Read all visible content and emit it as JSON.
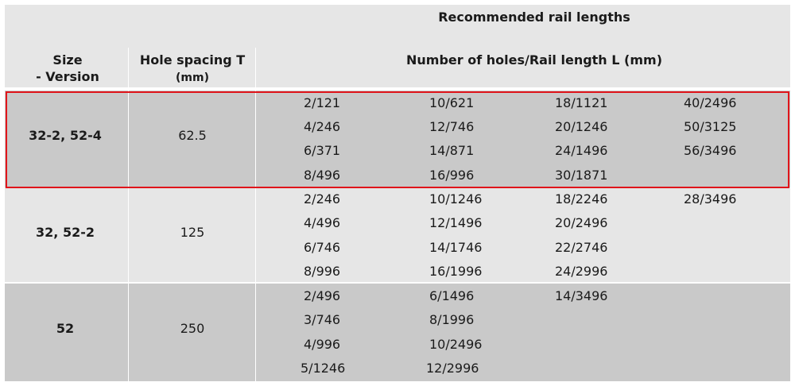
{
  "header": {
    "group_title": "Recommended rail lengths",
    "col_size_line1": "Size",
    "col_size_line2": "- Version",
    "col_hole_line1": "Hole spacing T",
    "col_hole_line2": "(mm)",
    "col_lengths": "Number of holes/Rail length L (mm)"
  },
  "rows": [
    {
      "size": "32-2, 52-4",
      "spacing": "62.5",
      "lengths": [
        [
          "2/121",
          "10/621",
          "18/1121",
          "40/2496"
        ],
        [
          "4/246",
          "12/746",
          "20/1246",
          "50/3125"
        ],
        [
          "6/371",
          "14/871",
          "24/1496",
          "56/3496"
        ],
        [
          "8/496",
          "16/996",
          "30/1871",
          ""
        ]
      ]
    },
    {
      "size": "32, 52-2",
      "spacing": "125",
      "lengths": [
        [
          "2/246",
          "10/1246",
          "18/2246",
          "28/3496"
        ],
        [
          "4/496",
          "12/1496",
          "20/2496",
          ""
        ],
        [
          "6/746",
          "14/1746",
          "22/2746",
          ""
        ],
        [
          "8/996",
          "16/1996",
          "24/2996",
          ""
        ]
      ]
    },
    {
      "size": "52",
      "spacing": "250",
      "lengths": [
        [
          "2/496",
          "6/1496",
          "14/3496",
          ""
        ],
        [
          "3/746",
          "8/1996",
          "",
          ""
        ],
        [
          "4/996",
          "10/2496",
          "",
          ""
        ],
        [
          "5/1246",
          "12/2996",
          "",
          ""
        ]
      ]
    }
  ],
  "highlight_color": "#e0151b"
}
